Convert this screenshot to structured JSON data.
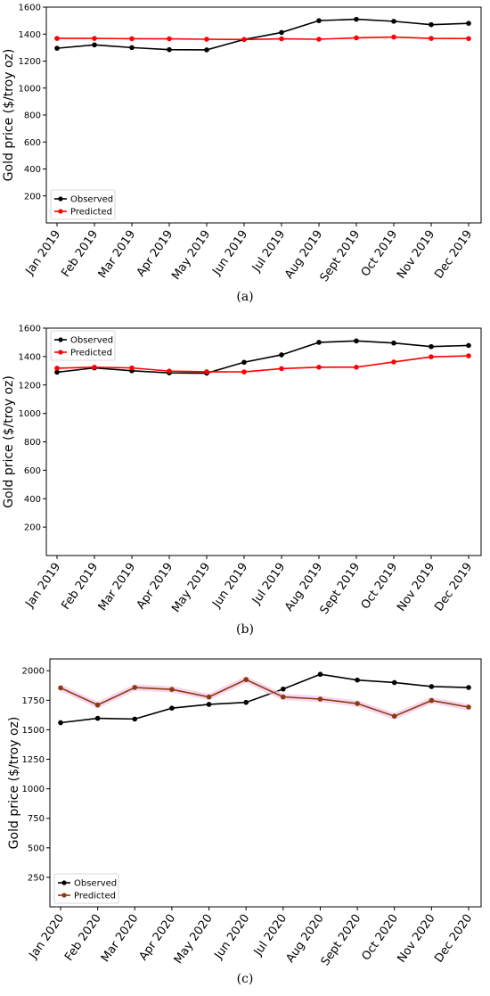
{
  "captions": [
    "(a)",
    "(b)",
    "(c)"
  ],
  "chart_data": [
    {
      "type": "line",
      "title": "",
      "xlabel": "",
      "ylabel": "Gold price ($/troy oz)",
      "categories": [
        "Jan 2019",
        "Feb 2019",
        "Mar 2019",
        "Apr 2019",
        "May 2019",
        "Jun 2019",
        "Jul 2019",
        "Aug 2019",
        "Sept 2019",
        "Oct 2019",
        "Nov 2019",
        "Dec 2019"
      ],
      "ylim": [
        0,
        1600
      ],
      "yticks": [
        200,
        400,
        600,
        800,
        1000,
        1200,
        1400,
        1600
      ],
      "grid": false,
      "legend_position": "bottom-left",
      "series": [
        {
          "name": "Observed",
          "color": "#000000",
          "values": [
            1295,
            1320,
            1300,
            1285,
            1283,
            1360,
            1412,
            1500,
            1510,
            1495,
            1470,
            1480
          ]
        },
        {
          "name": "Predicted",
          "color": "#ff0000",
          "values": [
            1368,
            1368,
            1366,
            1365,
            1362,
            1360,
            1365,
            1362,
            1372,
            1378,
            1368,
            1367
          ]
        }
      ]
    },
    {
      "type": "line",
      "title": "",
      "xlabel": "",
      "ylabel": "Gold price ($/troy oz)",
      "categories": [
        "Jan 2019",
        "Feb 2019",
        "Mar 2019",
        "Apr 2019",
        "May 2019",
        "Jun 2019",
        "Jul 2019",
        "Aug 2019",
        "Sept 2019",
        "Oct 2019",
        "Nov 2019",
        "Dec 2019"
      ],
      "ylim": [
        0,
        1600
      ],
      "yticks": [
        200,
        400,
        600,
        800,
        1000,
        1200,
        1400,
        1600
      ],
      "grid": false,
      "legend_position": "top-left",
      "series": [
        {
          "name": "Observed",
          "color": "#000000",
          "values": [
            1290,
            1320,
            1300,
            1285,
            1283,
            1360,
            1412,
            1500,
            1510,
            1495,
            1470,
            1478
          ]
        },
        {
          "name": "Predicted",
          "color": "#ff0000",
          "values": [
            1318,
            1325,
            1320,
            1298,
            1293,
            1292,
            1315,
            1325,
            1325,
            1362,
            1398,
            1405
          ]
        }
      ]
    },
    {
      "type": "line",
      "title": "",
      "xlabel": "",
      "ylabel": "Gold price ($/troy oz)",
      "categories": [
        "Jan 2020",
        "Feb 2020",
        "Mar 2020",
        "Apr 2020",
        "May 2020",
        "Jun 2020",
        "Jul 2020",
        "Aug 2020",
        "Sept 2020",
        "Oct 2020",
        "Nov 2020",
        "Dec 2020"
      ],
      "ylim": [
        0,
        2100
      ],
      "yticks": [
        250,
        500,
        750,
        1000,
        1250,
        1500,
        1750,
        2000
      ],
      "grid": false,
      "legend_position": "bottom-left",
      "series": [
        {
          "name": "Observed",
          "color": "#000000",
          "values": [
            1560,
            1597,
            1591,
            1683,
            1715,
            1732,
            1845,
            1970,
            1921,
            1900,
            1866,
            1858
          ]
        },
        {
          "name": "Predicted",
          "color": "#8b3a0f",
          "values": [
            1855,
            1710,
            1858,
            1842,
            1778,
            1925,
            1778,
            1760,
            1722,
            1615,
            1748,
            1692
          ]
        }
      ]
    }
  ]
}
